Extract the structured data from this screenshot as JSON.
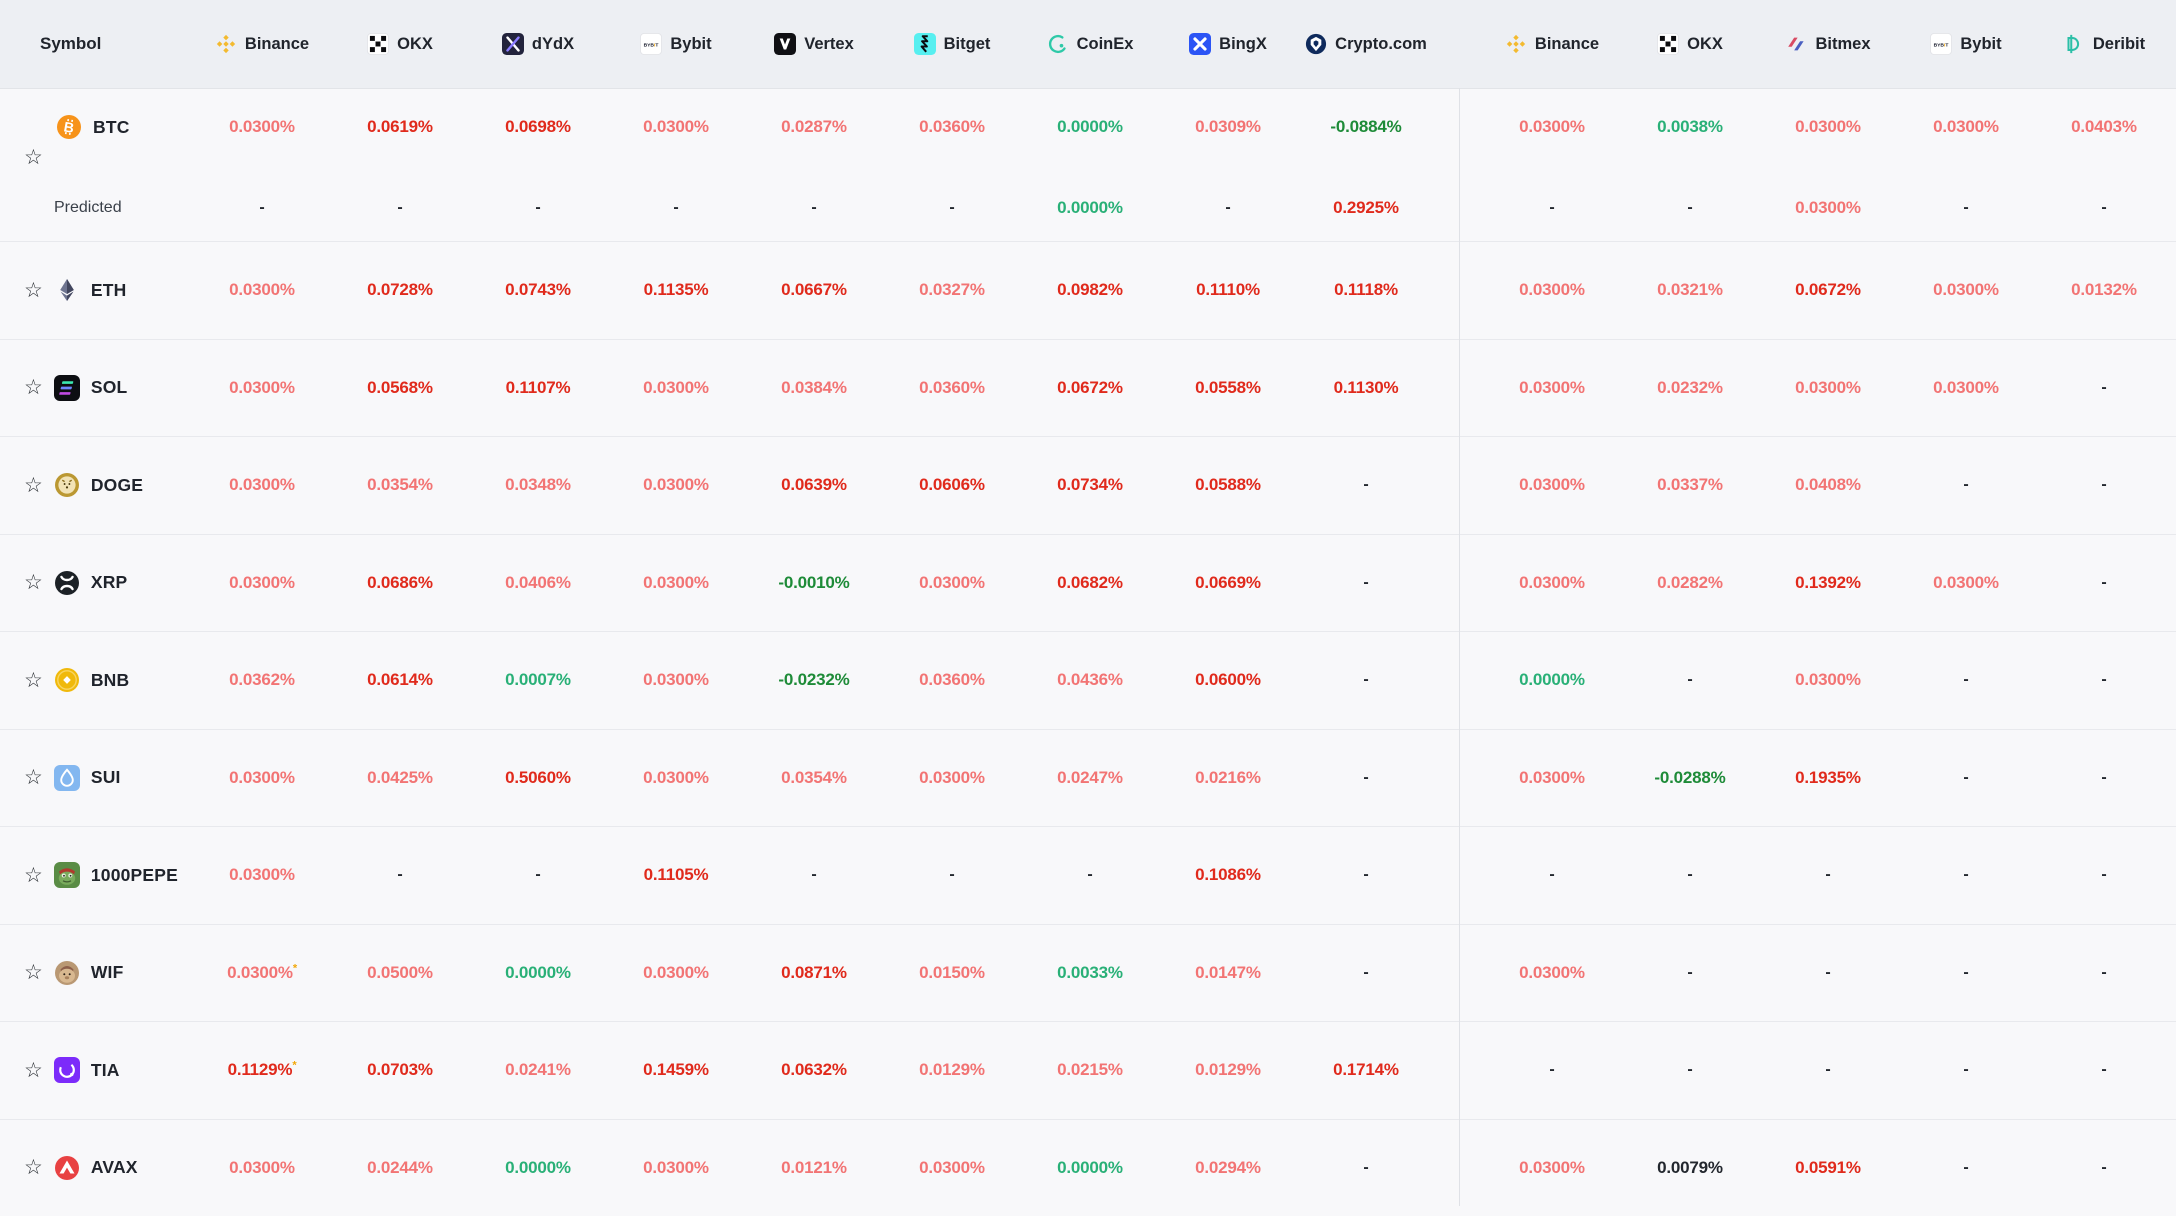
{
  "header": {
    "symbol_label": "Symbol",
    "exchanges_left": [
      {
        "label": "Binance",
        "icon": "binance-icon"
      },
      {
        "label": "OKX",
        "icon": "okx-icon"
      },
      {
        "label": "dYdX",
        "icon": "dydx-icon"
      },
      {
        "label": "Bybit",
        "icon": "bybit-icon"
      },
      {
        "label": "Vertex",
        "icon": "vertex-icon"
      },
      {
        "label": "Bitget",
        "icon": "bitget-icon"
      },
      {
        "label": "CoinEx",
        "icon": "coinex-icon"
      },
      {
        "label": "BingX",
        "icon": "bingx-icon"
      },
      {
        "label": "Crypto.com",
        "icon": "cryptocom-icon"
      }
    ],
    "exchanges_right": [
      {
        "label": "Binance",
        "icon": "binance-icon"
      },
      {
        "label": "OKX",
        "icon": "okx-icon"
      },
      {
        "label": "Bitmex",
        "icon": "bitmex-icon"
      },
      {
        "label": "Bybit",
        "icon": "bybit-icon"
      },
      {
        "label": "Deribit",
        "icon": "deribit-icon"
      }
    ]
  },
  "predicted_label": "Predicted",
  "icons": {
    "favorite-star": "☆"
  },
  "colors": {
    "header_bg": "#edeff3",
    "body_bg": "#f8f8fa",
    "row_separator": "#e8e9ed",
    "group_divider": "#dfe1e6",
    "text_dark": "#20242c"
  },
  "value_styles": {
    "lr": {
      "color": "#f27474",
      "meaning": "positive funding rate (light red)"
    },
    "br": {
      "color": "#e02a1c",
      "meaning": "high positive funding rate (bold red)"
    },
    "gr": {
      "color": "#29b077",
      "meaning": "zero / near-zero rate (green)"
    },
    "dg": {
      "color": "#1e8b38",
      "meaning": "negative rate (dark green)"
    },
    "bk": {
      "color": "#23272e",
      "meaning": "neutral rate (black)"
    },
    "dash": {
      "color": "#23272e",
      "meaning": "no data"
    },
    "asterisk_color": "#f2a90c"
  },
  "rows": [
    {
      "symbol": "BTC",
      "coin": "btc",
      "cells": [
        {
          "t": "0.0300%",
          "s": "lr"
        },
        {
          "t": "0.0619%",
          "s": "br"
        },
        {
          "t": "0.0698%",
          "s": "br"
        },
        {
          "t": "0.0300%",
          "s": "lr"
        },
        {
          "t": "0.0287%",
          "s": "lr"
        },
        {
          "t": "0.0360%",
          "s": "lr"
        },
        {
          "t": "0.0000%",
          "s": "gr"
        },
        {
          "t": "0.0309%",
          "s": "lr"
        },
        {
          "t": "-0.0884%",
          "s": "dg"
        },
        {
          "t": "0.0300%",
          "s": "lr"
        },
        {
          "t": "0.0038%",
          "s": "gr"
        },
        {
          "t": "0.0300%",
          "s": "lr"
        },
        {
          "t": "0.0300%",
          "s": "lr"
        },
        {
          "t": "0.0403%",
          "s": "lr"
        }
      ],
      "predicted": [
        {
          "t": "-",
          "s": "dash"
        },
        {
          "t": "-",
          "s": "dash"
        },
        {
          "t": "-",
          "s": "dash"
        },
        {
          "t": "-",
          "s": "dash"
        },
        {
          "t": "-",
          "s": "dash"
        },
        {
          "t": "-",
          "s": "dash"
        },
        {
          "t": "0.0000%",
          "s": "gr"
        },
        {
          "t": "-",
          "s": "dash"
        },
        {
          "t": "0.2925%",
          "s": "br"
        },
        {
          "t": "-",
          "s": "dash"
        },
        {
          "t": "-",
          "s": "dash"
        },
        {
          "t": "0.0300%",
          "s": "lr"
        },
        {
          "t": "-",
          "s": "dash"
        },
        {
          "t": "-",
          "s": "dash"
        }
      ]
    },
    {
      "symbol": "ETH",
      "coin": "eth",
      "cells": [
        {
          "t": "0.0300%",
          "s": "lr"
        },
        {
          "t": "0.0728%",
          "s": "br"
        },
        {
          "t": "0.0743%",
          "s": "br"
        },
        {
          "t": "0.1135%",
          "s": "br"
        },
        {
          "t": "0.0667%",
          "s": "br"
        },
        {
          "t": "0.0327%",
          "s": "lr"
        },
        {
          "t": "0.0982%",
          "s": "br"
        },
        {
          "t": "0.1110%",
          "s": "br"
        },
        {
          "t": "0.1118%",
          "s": "br"
        },
        {
          "t": "0.0300%",
          "s": "lr"
        },
        {
          "t": "0.0321%",
          "s": "lr"
        },
        {
          "t": "0.0672%",
          "s": "br"
        },
        {
          "t": "0.0300%",
          "s": "lr"
        },
        {
          "t": "0.0132%",
          "s": "lr"
        }
      ]
    },
    {
      "symbol": "SOL",
      "coin": "sol",
      "cells": [
        {
          "t": "0.0300%",
          "s": "lr"
        },
        {
          "t": "0.0568%",
          "s": "br"
        },
        {
          "t": "0.1107%",
          "s": "br"
        },
        {
          "t": "0.0300%",
          "s": "lr"
        },
        {
          "t": "0.0384%",
          "s": "lr"
        },
        {
          "t": "0.0360%",
          "s": "lr"
        },
        {
          "t": "0.0672%",
          "s": "br"
        },
        {
          "t": "0.0558%",
          "s": "br"
        },
        {
          "t": "0.1130%",
          "s": "br"
        },
        {
          "t": "0.0300%",
          "s": "lr"
        },
        {
          "t": "0.0232%",
          "s": "lr"
        },
        {
          "t": "0.0300%",
          "s": "lr"
        },
        {
          "t": "0.0300%",
          "s": "lr"
        },
        {
          "t": "-",
          "s": "dash"
        }
      ]
    },
    {
      "symbol": "DOGE",
      "coin": "doge",
      "cells": [
        {
          "t": "0.0300%",
          "s": "lr"
        },
        {
          "t": "0.0354%",
          "s": "lr"
        },
        {
          "t": "0.0348%",
          "s": "lr"
        },
        {
          "t": "0.0300%",
          "s": "lr"
        },
        {
          "t": "0.0639%",
          "s": "br"
        },
        {
          "t": "0.0606%",
          "s": "br"
        },
        {
          "t": "0.0734%",
          "s": "br"
        },
        {
          "t": "0.0588%",
          "s": "br"
        },
        {
          "t": "-",
          "s": "dash"
        },
        {
          "t": "0.0300%",
          "s": "lr"
        },
        {
          "t": "0.0337%",
          "s": "lr"
        },
        {
          "t": "0.0408%",
          "s": "lr"
        },
        {
          "t": "-",
          "s": "dash"
        },
        {
          "t": "-",
          "s": "dash"
        }
      ]
    },
    {
      "symbol": "XRP",
      "coin": "xrp",
      "cells": [
        {
          "t": "0.0300%",
          "s": "lr"
        },
        {
          "t": "0.0686%",
          "s": "br"
        },
        {
          "t": "0.0406%",
          "s": "lr"
        },
        {
          "t": "0.0300%",
          "s": "lr"
        },
        {
          "t": "-0.0010%",
          "s": "dg"
        },
        {
          "t": "0.0300%",
          "s": "lr"
        },
        {
          "t": "0.0682%",
          "s": "br"
        },
        {
          "t": "0.0669%",
          "s": "br"
        },
        {
          "t": "-",
          "s": "dash"
        },
        {
          "t": "0.0300%",
          "s": "lr"
        },
        {
          "t": "0.0282%",
          "s": "lr"
        },
        {
          "t": "0.1392%",
          "s": "br"
        },
        {
          "t": "0.0300%",
          "s": "lr"
        },
        {
          "t": "-",
          "s": "dash"
        }
      ]
    },
    {
      "symbol": "BNB",
      "coin": "bnb",
      "cells": [
        {
          "t": "0.0362%",
          "s": "lr"
        },
        {
          "t": "0.0614%",
          "s": "br"
        },
        {
          "t": "0.0007%",
          "s": "gr"
        },
        {
          "t": "0.0300%",
          "s": "lr"
        },
        {
          "t": "-0.0232%",
          "s": "dg"
        },
        {
          "t": "0.0360%",
          "s": "lr"
        },
        {
          "t": "0.0436%",
          "s": "lr"
        },
        {
          "t": "0.0600%",
          "s": "br"
        },
        {
          "t": "-",
          "s": "dash"
        },
        {
          "t": "0.0000%",
          "s": "gr"
        },
        {
          "t": "-",
          "s": "dash"
        },
        {
          "t": "0.0300%",
          "s": "lr"
        },
        {
          "t": "-",
          "s": "dash"
        },
        {
          "t": "-",
          "s": "dash"
        }
      ]
    },
    {
      "symbol": "SUI",
      "coin": "sui",
      "cells": [
        {
          "t": "0.0300%",
          "s": "lr"
        },
        {
          "t": "0.0425%",
          "s": "lr"
        },
        {
          "t": "0.5060%",
          "s": "br"
        },
        {
          "t": "0.0300%",
          "s": "lr"
        },
        {
          "t": "0.0354%",
          "s": "lr"
        },
        {
          "t": "0.0300%",
          "s": "lr"
        },
        {
          "t": "0.0247%",
          "s": "lr"
        },
        {
          "t": "0.0216%",
          "s": "lr"
        },
        {
          "t": "-",
          "s": "dash"
        },
        {
          "t": "0.0300%",
          "s": "lr"
        },
        {
          "t": "-0.0288%",
          "s": "dg"
        },
        {
          "t": "0.1935%",
          "s": "br"
        },
        {
          "t": "-",
          "s": "dash"
        },
        {
          "t": "-",
          "s": "dash"
        }
      ]
    },
    {
      "symbol": "1000PEPE",
      "coin": "pepe",
      "cells": [
        {
          "t": "0.0300%",
          "s": "lr"
        },
        {
          "t": "-",
          "s": "dash"
        },
        {
          "t": "-",
          "s": "dash"
        },
        {
          "t": "0.1105%",
          "s": "br"
        },
        {
          "t": "-",
          "s": "dash"
        },
        {
          "t": "-",
          "s": "dash"
        },
        {
          "t": "-",
          "s": "dash"
        },
        {
          "t": "0.1086%",
          "s": "br"
        },
        {
          "t": "-",
          "s": "dash"
        },
        {
          "t": "-",
          "s": "dash"
        },
        {
          "t": "-",
          "s": "dash"
        },
        {
          "t": "-",
          "s": "dash"
        },
        {
          "t": "-",
          "s": "dash"
        },
        {
          "t": "-",
          "s": "dash"
        }
      ]
    },
    {
      "symbol": "WIF",
      "coin": "wif",
      "cells": [
        {
          "t": "0.0300%",
          "s": "lr",
          "sup": "*"
        },
        {
          "t": "0.0500%",
          "s": "lr"
        },
        {
          "t": "0.0000%",
          "s": "gr"
        },
        {
          "t": "0.0300%",
          "s": "lr"
        },
        {
          "t": "0.0871%",
          "s": "br"
        },
        {
          "t": "0.0150%",
          "s": "lr"
        },
        {
          "t": "0.0033%",
          "s": "gr"
        },
        {
          "t": "0.0147%",
          "s": "lr"
        },
        {
          "t": "-",
          "s": "dash"
        },
        {
          "t": "0.0300%",
          "s": "lr"
        },
        {
          "t": "-",
          "s": "dash"
        },
        {
          "t": "-",
          "s": "dash"
        },
        {
          "t": "-",
          "s": "dash"
        },
        {
          "t": "-",
          "s": "dash"
        }
      ]
    },
    {
      "symbol": "TIA",
      "coin": "tia",
      "cells": [
        {
          "t": "0.1129%",
          "s": "br",
          "sup": "*"
        },
        {
          "t": "0.0703%",
          "s": "br"
        },
        {
          "t": "0.0241%",
          "s": "lr"
        },
        {
          "t": "0.1459%",
          "s": "br"
        },
        {
          "t": "0.0632%",
          "s": "br"
        },
        {
          "t": "0.0129%",
          "s": "lr"
        },
        {
          "t": "0.0215%",
          "s": "lr"
        },
        {
          "t": "0.0129%",
          "s": "lr"
        },
        {
          "t": "0.1714%",
          "s": "br"
        },
        {
          "t": "-",
          "s": "dash"
        },
        {
          "t": "-",
          "s": "dash"
        },
        {
          "t": "-",
          "s": "dash"
        },
        {
          "t": "-",
          "s": "dash"
        },
        {
          "t": "-",
          "s": "dash"
        }
      ]
    },
    {
      "symbol": "AVAX",
      "coin": "avax",
      "cells": [
        {
          "t": "0.0300%",
          "s": "lr"
        },
        {
          "t": "0.0244%",
          "s": "lr"
        },
        {
          "t": "0.0000%",
          "s": "gr"
        },
        {
          "t": "0.0300%",
          "s": "lr"
        },
        {
          "t": "0.0121%",
          "s": "lr"
        },
        {
          "t": "0.0300%",
          "s": "lr"
        },
        {
          "t": "0.0000%",
          "s": "gr"
        },
        {
          "t": "0.0294%",
          "s": "lr"
        },
        {
          "t": "-",
          "s": "dash"
        },
        {
          "t": "0.0300%",
          "s": "lr"
        },
        {
          "t": "0.0079%",
          "s": "bk"
        },
        {
          "t": "0.0591%",
          "s": "br"
        },
        {
          "t": "-",
          "s": "dash"
        },
        {
          "t": "-",
          "s": "dash"
        }
      ]
    }
  ]
}
